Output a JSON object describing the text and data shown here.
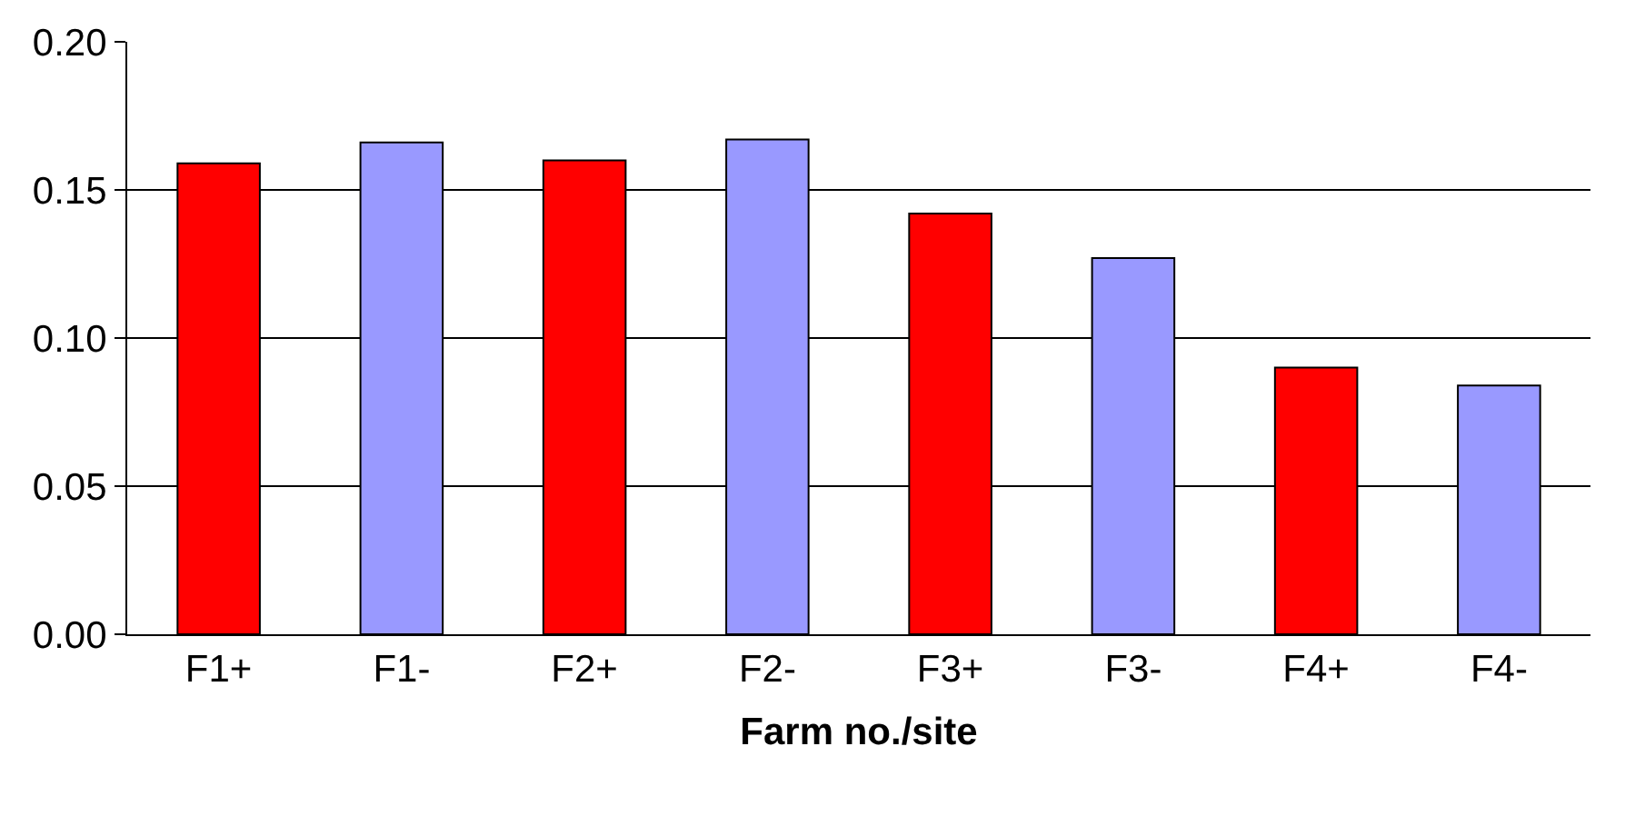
{
  "chart_data": {
    "type": "bar",
    "xlabel": "Farm no./site",
    "categories": [
      "F1+",
      "F1-",
      "F2+",
      "F2-",
      "F3+",
      "F3-",
      "F4+",
      "F4-"
    ],
    "values": [
      0.159,
      0.166,
      0.16,
      0.167,
      0.142,
      0.127,
      0.09,
      0.084
    ],
    "colors": [
      "#ff0000",
      "#9999ff",
      "#ff0000",
      "#9999ff",
      "#ff0000",
      "#9999ff",
      "#ff0000",
      "#9999ff"
    ],
    "ylim": [
      0,
      0.2
    ],
    "yticks": [
      {
        "value": 0,
        "label": "0.00"
      },
      {
        "value": 0.05,
        "label": "0.05"
      },
      {
        "value": 0.1,
        "label": "0.10"
      },
      {
        "value": 0.15,
        "label": "0.15"
      },
      {
        "value": 0.2,
        "label": "0.20"
      }
    ],
    "grid": "y",
    "legend": false
  }
}
